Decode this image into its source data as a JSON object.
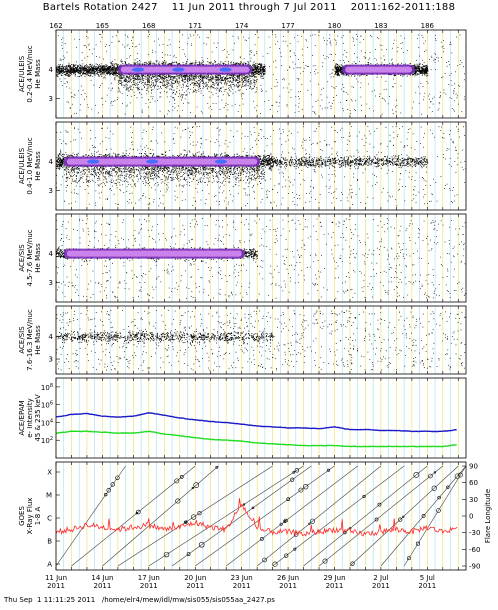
{
  "header": {
    "title": "Bartels Rotation 2427    11 Jun 2011 through 7 Jul 2011    2011:162-2011:188"
  },
  "footer": {
    "text": "Thu Sep  1 11:11:25 2011   /home/elr4/mew/idl/mw/sis055/sis055aa_2427.ps"
  },
  "colors": {
    "density_low": "#000000",
    "density_mid": "#7b2fbe",
    "density_high": "#d48cf2",
    "density_peak": "#4a6cff",
    "electron_high": "#1a1ac8",
    "electron_low": "#1fdc1f",
    "xray": "#ff2a2a",
    "grid_yellow": "#e8e060",
    "grid_cyan": "#9fe0e0"
  },
  "chart_data": [
    {
      "type": "scatter",
      "name": "ACE/ULEIS 0.2-0.4 MeV/nuc",
      "ylabel_lines": [
        "ACE/ULEIS",
        "0.2-0.4 MeV/nuc",
        "He Mass"
      ],
      "yticks": [
        "4",
        "3"
      ],
      "doy_top_labels": [
        "162",
        "165",
        "168",
        "171",
        "174",
        "177",
        "180",
        "183",
        "186"
      ],
      "bands": [
        {
          "doy_start": 162.0,
          "doy_end": 165.5,
          "mass": 4.0,
          "level": "low"
        },
        {
          "doy_start": 165.5,
          "doy_end": 175.5,
          "mass": 4.0,
          "level": "high"
        },
        {
          "doy_start": 180.0,
          "doy_end": 186.0,
          "mass": 4.0,
          "level": "mid"
        }
      ]
    },
    {
      "type": "scatter",
      "name": "ACE/ULEIS 0.4-1.0 MeV/nuc",
      "ylabel_lines": [
        "ACE/ULEIS",
        "0.4-1.0 MeV/nuc",
        "He Mass"
      ],
      "yticks": [
        "4",
        "3"
      ],
      "bands": [
        {
          "doy_start": 162.0,
          "doy_end": 176.0,
          "mass": 4.0,
          "level": "high"
        },
        {
          "doy_start": 176.0,
          "doy_end": 186.0,
          "mass": 4.0,
          "level": "low"
        }
      ]
    },
    {
      "type": "scatter",
      "name": "ACE/SIS 4.5-7.6 MeV/nuc",
      "ylabel_lines": [
        "ACE/SIS",
        "4.5-7.6 MeV/nuc",
        "He Mass"
      ],
      "yticks": [
        "4",
        "3"
      ],
      "bands": [
        {
          "doy_start": 162.0,
          "doy_end": 175.0,
          "mass": 4.0,
          "level": "mid"
        }
      ]
    },
    {
      "type": "scatter",
      "name": "ACE/SIS 7.6-16.3 MeV/nuc",
      "ylabel_lines": [
        "ACE/SIS",
        "7.6-16.3 MeV/nuc",
        "He Mass"
      ],
      "yticks": [
        "4",
        "3"
      ],
      "bands": [
        {
          "doy_start": 162.0,
          "doy_end": 176.0,
          "mass": 4.0,
          "level": "low"
        }
      ]
    },
    {
      "type": "line",
      "name": "ACE/EPAM electron intensity",
      "ylabel_lines": [
        "ACE/EPAM",
        "e- Intensity",
        "45 & 235 keV"
      ],
      "yscale": "log",
      "ytick_exponents": [
        8,
        6,
        4,
        2
      ],
      "ylim_exponent": [
        0,
        9
      ],
      "x_doy": [
        162,
        163,
        164,
        165,
        166,
        167,
        168,
        169,
        170,
        171,
        172,
        173,
        174,
        175,
        176,
        177,
        178,
        179,
        180,
        181,
        182,
        183,
        184,
        185,
        186,
        187,
        188
      ],
      "series": [
        {
          "color_key": "electron_high",
          "log_values": [
            4.6,
            4.9,
            5.0,
            4.7,
            4.6,
            4.7,
            5.1,
            4.8,
            4.5,
            4.3,
            4.1,
            4.0,
            3.8,
            3.6,
            3.5,
            3.4,
            3.4,
            3.3,
            3.5,
            3.2,
            3.2,
            3.1,
            3.1,
            3.0,
            3.0,
            3.0,
            3.2
          ]
        },
        {
          "color_key": "electron_low",
          "log_values": [
            2.8,
            3.0,
            3.0,
            2.9,
            2.8,
            2.8,
            3.0,
            2.7,
            2.5,
            2.3,
            2.1,
            2.0,
            1.9,
            1.7,
            1.6,
            1.5,
            1.4,
            1.4,
            1.4,
            1.3,
            1.3,
            1.3,
            1.3,
            1.3,
            1.3,
            1.3,
            1.5
          ]
        }
      ]
    },
    {
      "type": "line",
      "name": "GOES X-Ray Flux 1-8 A",
      "ylabel_lines": [
        "GOES",
        "X-Ray Flux",
        "1-8 A"
      ],
      "yticks_left": [
        "X",
        "M",
        "C",
        "B",
        "A"
      ],
      "y2label": "Flare Longitude",
      "yticks_right": [
        "90",
        "60",
        "30",
        "0",
        "-30",
        "-60",
        "-90"
      ],
      "x_doy": [
        162,
        163,
        164,
        165,
        166,
        167,
        168,
        169,
        170,
        171,
        172,
        173,
        174,
        175,
        176,
        177,
        178,
        179,
        180,
        181,
        182,
        183,
        184,
        185,
        186,
        187,
        188
      ],
      "series": [
        {
          "color_key": "xray",
          "class_values": [
            1.4,
            1.5,
            1.7,
            1.6,
            1.5,
            1.6,
            1.7,
            1.5,
            1.6,
            1.8,
            1.6,
            1.5,
            2.6,
            1.5,
            1.4,
            1.4,
            1.3,
            1.4,
            1.5,
            1.4,
            1.3,
            1.4,
            1.5,
            1.4,
            1.6,
            1.4,
            1.6
          ]
        }
      ],
      "x_tick_labels": [
        {
          "day": "11 Jun",
          "year": "2011"
        },
        {
          "day": "14 Jun",
          "year": "2011"
        },
        {
          "day": "17 Jun",
          "year": "2011"
        },
        {
          "day": "20 Jun",
          "year": "2011"
        },
        {
          "day": "23 Jun",
          "year": "2011"
        },
        {
          "day": "26 Jun",
          "year": "2011"
        },
        {
          "day": "29 Jun",
          "year": "2011"
        },
        {
          "day": "2 Jul",
          "year": "2011"
        },
        {
          "day": "5 Jul",
          "year": "2011"
        }
      ]
    }
  ]
}
